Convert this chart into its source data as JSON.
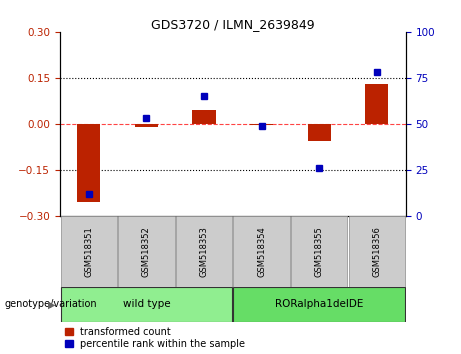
{
  "title": "GDS3720 / ILMN_2639849",
  "samples": [
    "GSM518351",
    "GSM518352",
    "GSM518353",
    "GSM518354",
    "GSM518355",
    "GSM518356"
  ],
  "transformed_count": [
    -0.255,
    -0.01,
    0.045,
    -0.005,
    -0.055,
    0.13
  ],
  "percentile_rank": [
    12,
    53,
    65,
    49,
    26,
    78
  ],
  "groups": [
    {
      "label": "wild type",
      "indices": [
        0,
        1,
        2
      ],
      "color": "#90EE90"
    },
    {
      "label": "RORalpha1delDE",
      "indices": [
        3,
        4,
        5
      ],
      "color": "#66DD66"
    }
  ],
  "ylim_left": [
    -0.3,
    0.3
  ],
  "ylim_right": [
    0,
    100
  ],
  "yticks_left": [
    -0.3,
    -0.15,
    0,
    0.15,
    0.3
  ],
  "yticks_right": [
    0,
    25,
    50,
    75,
    100
  ],
  "bar_color_red": "#BB2200",
  "marker_color_blue": "#0000BB",
  "zero_line_color": "#FF4444",
  "dot_line_color": "#000000",
  "background_color": "#FFFFFF",
  "sample_box_color": "#CCCCCC",
  "genotype_label": "genotype/variation",
  "legend_red_label": "transformed count",
  "legend_blue_label": "percentile rank within the sample",
  "bar_width": 0.4,
  "marker_size": 5
}
